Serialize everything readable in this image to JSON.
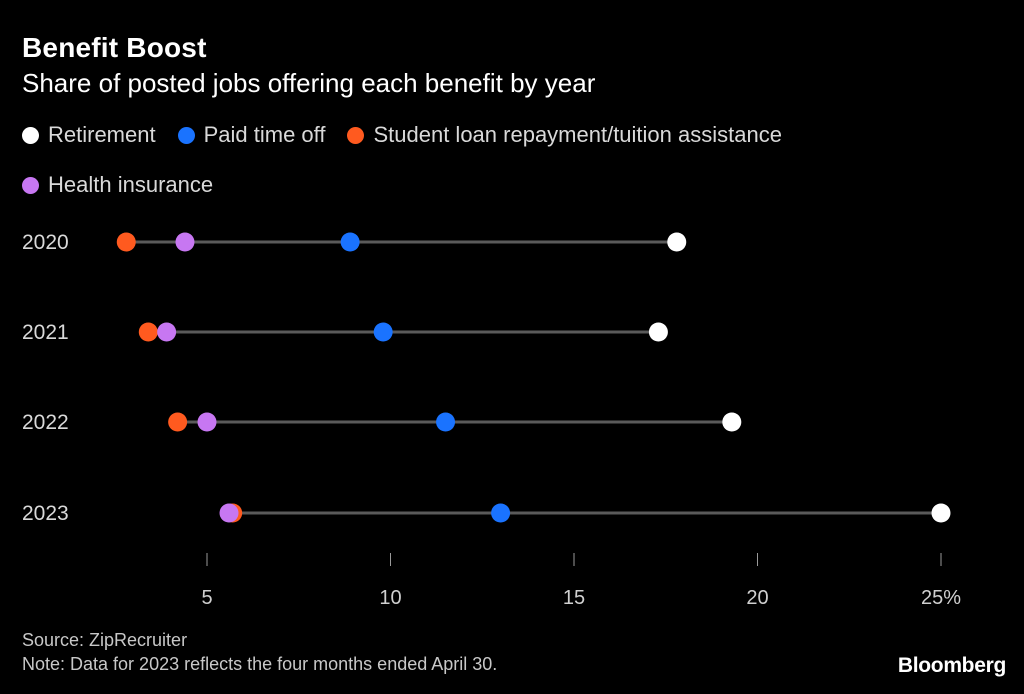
{
  "header": {
    "title": "Benefit Boost",
    "subtitle": "Share of posted jobs offering each benefit by year"
  },
  "footer": {
    "source": "Source: ZipRecruiter",
    "note": "Note: Data for 2023 reflects the four months ended April 30."
  },
  "brand": "Bloomberg",
  "colors": {
    "background": "#000000",
    "connector": "#5a5a5a",
    "text": "#ffffff"
  },
  "chart_data": {
    "type": "scatter",
    "subtype": "dot-plot",
    "title": "Benefit Boost",
    "subtitle": "Share of posted jobs offering each benefit by year",
    "categories": [
      "2020",
      "2021",
      "2022",
      "2023"
    ],
    "x_unit": "%",
    "xlim": [
      0,
      27
    ],
    "x_ticks": [
      5,
      10,
      15,
      20,
      25
    ],
    "x_tick_labels": [
      "5",
      "10",
      "15",
      "20",
      "25%"
    ],
    "grid": false,
    "legend_position": "top-left",
    "series": [
      {
        "name": "Retirement",
        "color": "#ffffff",
        "values": [
          17.8,
          17.3,
          19.3,
          25.0
        ]
      },
      {
        "name": "Paid time off",
        "color": "#1a73ff",
        "values": [
          8.9,
          9.8,
          11.5,
          13.0
        ]
      },
      {
        "name": "Student loan repayment/tuition assistance",
        "color": "#ff5a1f",
        "values": [
          2.8,
          3.4,
          4.2,
          5.7
        ]
      },
      {
        "name": "Health insurance",
        "color": "#c777f2",
        "values": [
          4.4,
          3.9,
          5.0,
          5.6
        ]
      }
    ]
  }
}
